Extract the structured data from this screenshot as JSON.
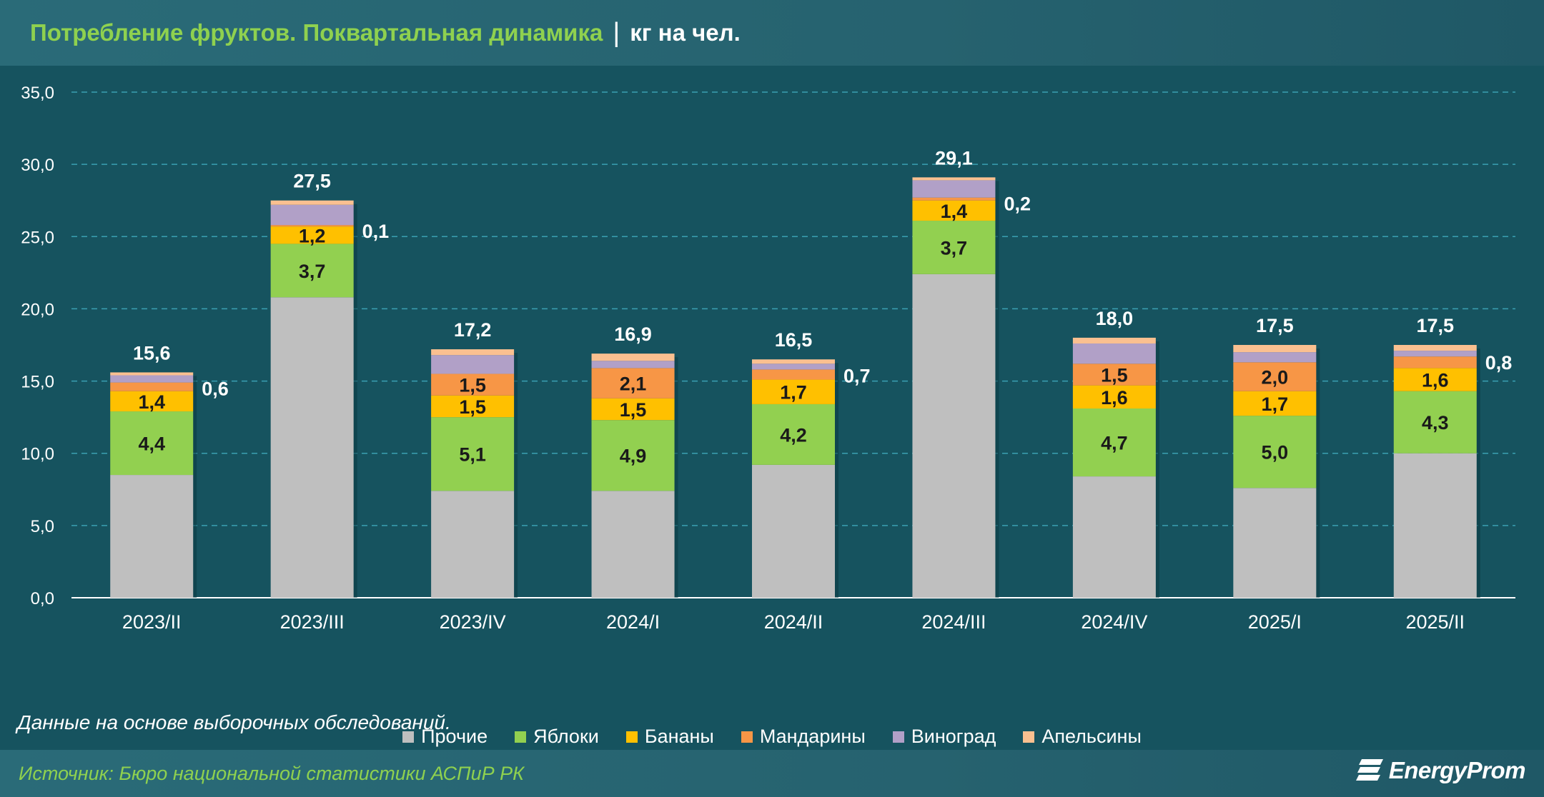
{
  "header": {
    "title": "Потребление фруктов. Поквартальная динамика",
    "separator": "|",
    "unit": "кг на чел."
  },
  "note": "Данные на основе выборочных обследований.",
  "footer": {
    "source": "Источник: Бюро национальной статистики АСПиР РК",
    "logo": "EnergyProm"
  },
  "chart_data": {
    "type": "bar",
    "stacked": true,
    "title": "Потребление фруктов. Поквартальная динамика",
    "ylabel": "",
    "xlabel": "",
    "ylim": [
      0,
      35
    ],
    "yticks": [
      "0,0",
      "5,0",
      "10,0",
      "15,0",
      "20,0",
      "25,0",
      "30,0",
      "35,0"
    ],
    "grid": true,
    "legend_position": "bottom",
    "categories": [
      "2023/II",
      "2023/III",
      "2023/IV",
      "2024/I",
      "2024/II",
      "2024/III",
      "2024/IV",
      "2025/I",
      "2025/II"
    ],
    "totals": [
      15.6,
      27.5,
      17.2,
      16.9,
      16.5,
      29.1,
      18.0,
      17.5,
      17.5
    ],
    "total_labels": [
      "15,6",
      "27,5",
      "17,2",
      "16,9",
      "16,5",
      "29,1",
      "18,0",
      "17,5",
      "17,5"
    ],
    "series": [
      {
        "name": "Прочие",
        "color": "#bfbfbf",
        "values": [
          8.5,
          20.8,
          7.4,
          7.4,
          9.2,
          22.4,
          8.4,
          7.6,
          10.0
        ],
        "labels": [
          "",
          "",
          "",
          "",
          "",
          "",
          "",
          "",
          ""
        ]
      },
      {
        "name": "Яблоки",
        "color": "#92d050",
        "values": [
          4.4,
          3.7,
          5.1,
          4.9,
          4.2,
          3.7,
          4.7,
          5.0,
          4.3
        ],
        "labels": [
          "4,4",
          "3,7",
          "5,1",
          "4,9",
          "4,2",
          "3,7",
          "4,7",
          "5,0",
          "4,3"
        ]
      },
      {
        "name": "Бананы",
        "color": "#ffc000",
        "values": [
          1.4,
          1.2,
          1.5,
          1.5,
          1.7,
          1.4,
          1.6,
          1.7,
          1.6
        ],
        "labels": [
          "1,4",
          "1,2",
          "1,5",
          "1,5",
          "1,7",
          "1,4",
          "1,6",
          "1,7",
          "1,6"
        ]
      },
      {
        "name": "Мандарины",
        "color": "#f79646",
        "values": [
          0.6,
          0.1,
          1.5,
          2.1,
          0.7,
          0.2,
          1.5,
          2.0,
          0.8
        ],
        "labels": [
          "0,6",
          "0,1",
          "1,5",
          "2,1",
          "0,7",
          "0,2",
          "1,5",
          "2,0",
          "0,8"
        ],
        "outside_label": [
          true,
          true,
          false,
          false,
          true,
          true,
          false,
          false,
          true
        ]
      },
      {
        "name": "Виноград",
        "color": "#b1a0c7",
        "values": [
          0.5,
          1.4,
          1.3,
          0.5,
          0.4,
          1.2,
          1.4,
          0.7,
          0.4
        ],
        "labels": [
          "",
          "",
          "",
          "",
          "",
          "",
          "",
          "",
          ""
        ]
      },
      {
        "name": "Апельсины",
        "color": "#fac090",
        "values": [
          0.2,
          0.3,
          0.4,
          0.5,
          0.3,
          0.2,
          0.4,
          0.5,
          0.4
        ],
        "labels": [
          "",
          "",
          "",
          "",
          "",
          "",
          "",
          "",
          ""
        ]
      }
    ]
  }
}
